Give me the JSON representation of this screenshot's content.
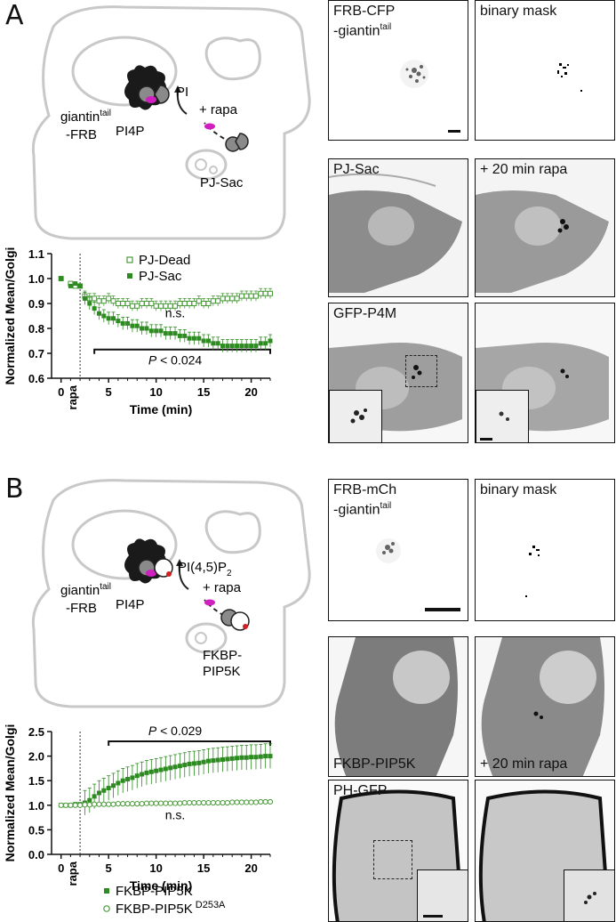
{
  "panelA": {
    "letter": "A",
    "schematic": {
      "giantin": "giantin",
      "giantin_sup": "tail",
      "giantin_sub": "-FRB",
      "pi4p": "PI4P",
      "pi": "PI",
      "rapa": "+ rapa",
      "enzyme": "PJ-Sac"
    },
    "chart_data": {
      "type": "scatter",
      "ylabel": "Normalized Mean/Golgi",
      "xlabel": "Time (min)",
      "xlim": [
        -1,
        22
      ],
      "ylim": [
        0.6,
        1.1
      ],
      "xticks": [
        0,
        5,
        10,
        15,
        20
      ],
      "yticks": [
        0.6,
        0.7,
        0.8,
        0.9,
        1.0,
        1.1
      ],
      "ytick_labels": [
        "0.6",
        "0.7",
        "0.8",
        "0.9",
        "1.0",
        "1.1"
      ],
      "rapa_time": 2,
      "rapa_label": "rapa",
      "series": [
        {
          "name": "PJ-Dead",
          "marker": "open-square",
          "color": "#4a9a3a",
          "x": [
            0,
            1,
            1.5,
            2,
            2.5,
            3,
            3.5,
            4,
            4.5,
            5,
            5.5,
            6,
            6.5,
            7,
            7.5,
            8,
            8.5,
            9,
            9.5,
            10,
            10.5,
            11,
            11.5,
            12,
            12.5,
            13,
            13.5,
            14,
            14.5,
            15,
            15.5,
            16,
            16.5,
            17,
            17.5,
            18,
            18.5,
            19,
            19.5,
            20,
            20.5,
            21,
            21.5,
            22
          ],
          "y": [
            1.0,
            0.98,
            0.97,
            0.97,
            0.93,
            0.92,
            0.92,
            0.91,
            0.91,
            0.92,
            0.91,
            0.9,
            0.9,
            0.9,
            0.89,
            0.89,
            0.9,
            0.9,
            0.9,
            0.89,
            0.89,
            0.89,
            0.89,
            0.89,
            0.9,
            0.9,
            0.9,
            0.9,
            0.91,
            0.9,
            0.9,
            0.91,
            0.91,
            0.92,
            0.92,
            0.92,
            0.92,
            0.93,
            0.93,
            0.93,
            0.93,
            0.94,
            0.94,
            0.94
          ],
          "err": 0.02
        },
        {
          "name": "PJ-Sac",
          "marker": "filled-square",
          "color": "#2e8b22",
          "x": [
            0,
            1,
            1.5,
            2,
            2.5,
            3,
            3.5,
            4,
            4.5,
            5,
            5.5,
            6,
            6.5,
            7,
            7.5,
            8,
            8.5,
            9,
            9.5,
            10,
            10.5,
            11,
            11.5,
            12,
            12.5,
            13,
            13.5,
            14,
            14.5,
            15,
            15.5,
            16,
            16.5,
            17,
            17.5,
            18,
            18.5,
            19,
            19.5,
            20,
            20.5,
            21,
            21.5,
            22
          ],
          "y": [
            1.0,
            0.97,
            0.98,
            0.97,
            0.92,
            0.9,
            0.88,
            0.86,
            0.85,
            0.84,
            0.84,
            0.83,
            0.82,
            0.82,
            0.81,
            0.81,
            0.8,
            0.8,
            0.79,
            0.79,
            0.79,
            0.78,
            0.78,
            0.78,
            0.77,
            0.77,
            0.76,
            0.76,
            0.76,
            0.75,
            0.75,
            0.74,
            0.74,
            0.73,
            0.73,
            0.73,
            0.73,
            0.73,
            0.73,
            0.73,
            0.73,
            0.74,
            0.74,
            0.75
          ],
          "err": 0.025
        }
      ],
      "annotations": [
        {
          "text": "n.s.",
          "x": 12,
          "y": 0.845
        },
        {
          "text_italic": "P",
          "text": " < 0.024",
          "x": 12,
          "y": 0.655
        }
      ],
      "bracket": {
        "x1": 3.5,
        "x2": 22,
        "y": 0.715
      }
    },
    "micrographs": {
      "frb": "FRB-CFP\n-giantin",
      "frb_sup": "tail",
      "mask": "binary mask",
      "pjsac": "PJ-Sac",
      "rapa20": "+ 20 min rapa",
      "p4m": "GFP-P4M"
    }
  },
  "panelB": {
    "letter": "B",
    "schematic": {
      "giantin": "giantin",
      "giantin_sup": "tail",
      "giantin_sub": "-FRB",
      "pi4p": "PI4P",
      "pip2": "PI(4,5)P",
      "pip2_sub": "2",
      "rapa": "+ rapa",
      "enzyme1": "FKBP-",
      "enzyme2": "PIP5K"
    },
    "chart_data": {
      "type": "scatter",
      "ylabel": "Normalized Mean/Golgi",
      "xlabel": "Time (min)",
      "xlim": [
        -1,
        22
      ],
      "ylim": [
        0,
        2.5
      ],
      "xticks": [
        0,
        5,
        10,
        15,
        20
      ],
      "yticks": [
        0.0,
        0.5,
        1.0,
        1.5,
        2.0,
        2.5
      ],
      "ytick_labels": [
        "0.0",
        "0.5",
        "1.0",
        "1.5",
        "2.0",
        "2.5"
      ],
      "rapa_time": 2,
      "rapa_label": "rapa",
      "series": [
        {
          "name": "FKBP-PIP5K",
          "marker": "filled-square",
          "color": "#2e8b22",
          "x": [
            0,
            0.5,
            1,
            1.5,
            2,
            2.5,
            3,
            3.5,
            4,
            4.5,
            5,
            5.5,
            6,
            6.5,
            7,
            7.5,
            8,
            8.5,
            9,
            9.5,
            10,
            10.5,
            11,
            11.5,
            12,
            12.5,
            13,
            13.5,
            14,
            14.5,
            15,
            15.5,
            16,
            16.5,
            17,
            17.5,
            18,
            18.5,
            19,
            19.5,
            20,
            20.5,
            21,
            21.5,
            22
          ],
          "y": [
            1.0,
            1.0,
            1.0,
            1.02,
            1.02,
            1.05,
            1.1,
            1.18,
            1.25,
            1.3,
            1.35,
            1.4,
            1.45,
            1.5,
            1.53,
            1.56,
            1.6,
            1.63,
            1.66,
            1.68,
            1.7,
            1.72,
            1.74,
            1.76,
            1.78,
            1.8,
            1.82,
            1.84,
            1.85,
            1.86,
            1.88,
            1.9,
            1.91,
            1.92,
            1.93,
            1.94,
            1.95,
            1.96,
            1.97,
            1.97,
            1.98,
            1.98,
            1.99,
            2.0,
            2.0
          ],
          "err": 0.25
        },
        {
          "name": "FKBP-PIP5K",
          "name_sup": "D253A",
          "marker": "open-circle",
          "color": "#4a9a3a",
          "x": [
            0,
            0.5,
            1,
            1.5,
            2,
            2.5,
            3,
            3.5,
            4,
            4.5,
            5,
            5.5,
            6,
            6.5,
            7,
            7.5,
            8,
            8.5,
            9,
            9.5,
            10,
            10.5,
            11,
            11.5,
            12,
            12.5,
            13,
            13.5,
            14,
            14.5,
            15,
            15.5,
            16,
            16.5,
            17,
            17.5,
            18,
            18.5,
            19,
            19.5,
            20,
            20.5,
            21,
            21.5,
            22
          ],
          "y": [
            1.0,
            1.0,
            1.0,
            1.0,
            1.0,
            1.01,
            1.01,
            1.02,
            1.02,
            1.02,
            1.02,
            1.02,
            1.03,
            1.03,
            1.03,
            1.03,
            1.03,
            1.03,
            1.04,
            1.04,
            1.04,
            1.04,
            1.04,
            1.04,
            1.04,
            1.04,
            1.05,
            1.05,
            1.05,
            1.05,
            1.05,
            1.05,
            1.05,
            1.05,
            1.05,
            1.05,
            1.06,
            1.06,
            1.06,
            1.06,
            1.06,
            1.06,
            1.07,
            1.07,
            1.07
          ],
          "err": 0.03
        }
      ],
      "annotations": [
        {
          "text": "n.s.",
          "x": 12,
          "y": 0.72
        },
        {
          "text_italic": "P",
          "text": " < 0.029",
          "x": 12,
          "y": 2.43
        }
      ],
      "bracket": {
        "x1": 5,
        "x2": 22,
        "y": 2.3
      }
    },
    "micrographs": {
      "frb": "FRB-mCh\n-giantin",
      "frb_sup": "tail",
      "mask": "binary mask",
      "pip5k": "FKBP-PIP5K",
      "rapa20": "+ 20 min rapa",
      "phgfp": "PH-GFP"
    }
  }
}
